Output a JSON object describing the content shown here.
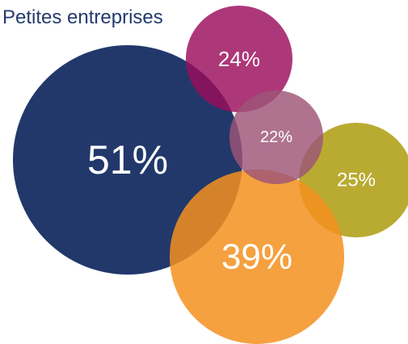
{
  "chart_data": {
    "type": "bubble",
    "title": "Petites entreprises",
    "series": [
      {
        "value": 51,
        "label": "51%",
        "color": "#22386b"
      },
      {
        "value": 24,
        "label": "24%",
        "color": "#9b0c5b"
      },
      {
        "value": 22,
        "label": "22%",
        "color": "#9e5477"
      },
      {
        "value": 25,
        "label": "25%",
        "color": "#a99705"
      },
      {
        "value": 39,
        "label": "39%",
        "color": "#f3901f"
      }
    ]
  }
}
